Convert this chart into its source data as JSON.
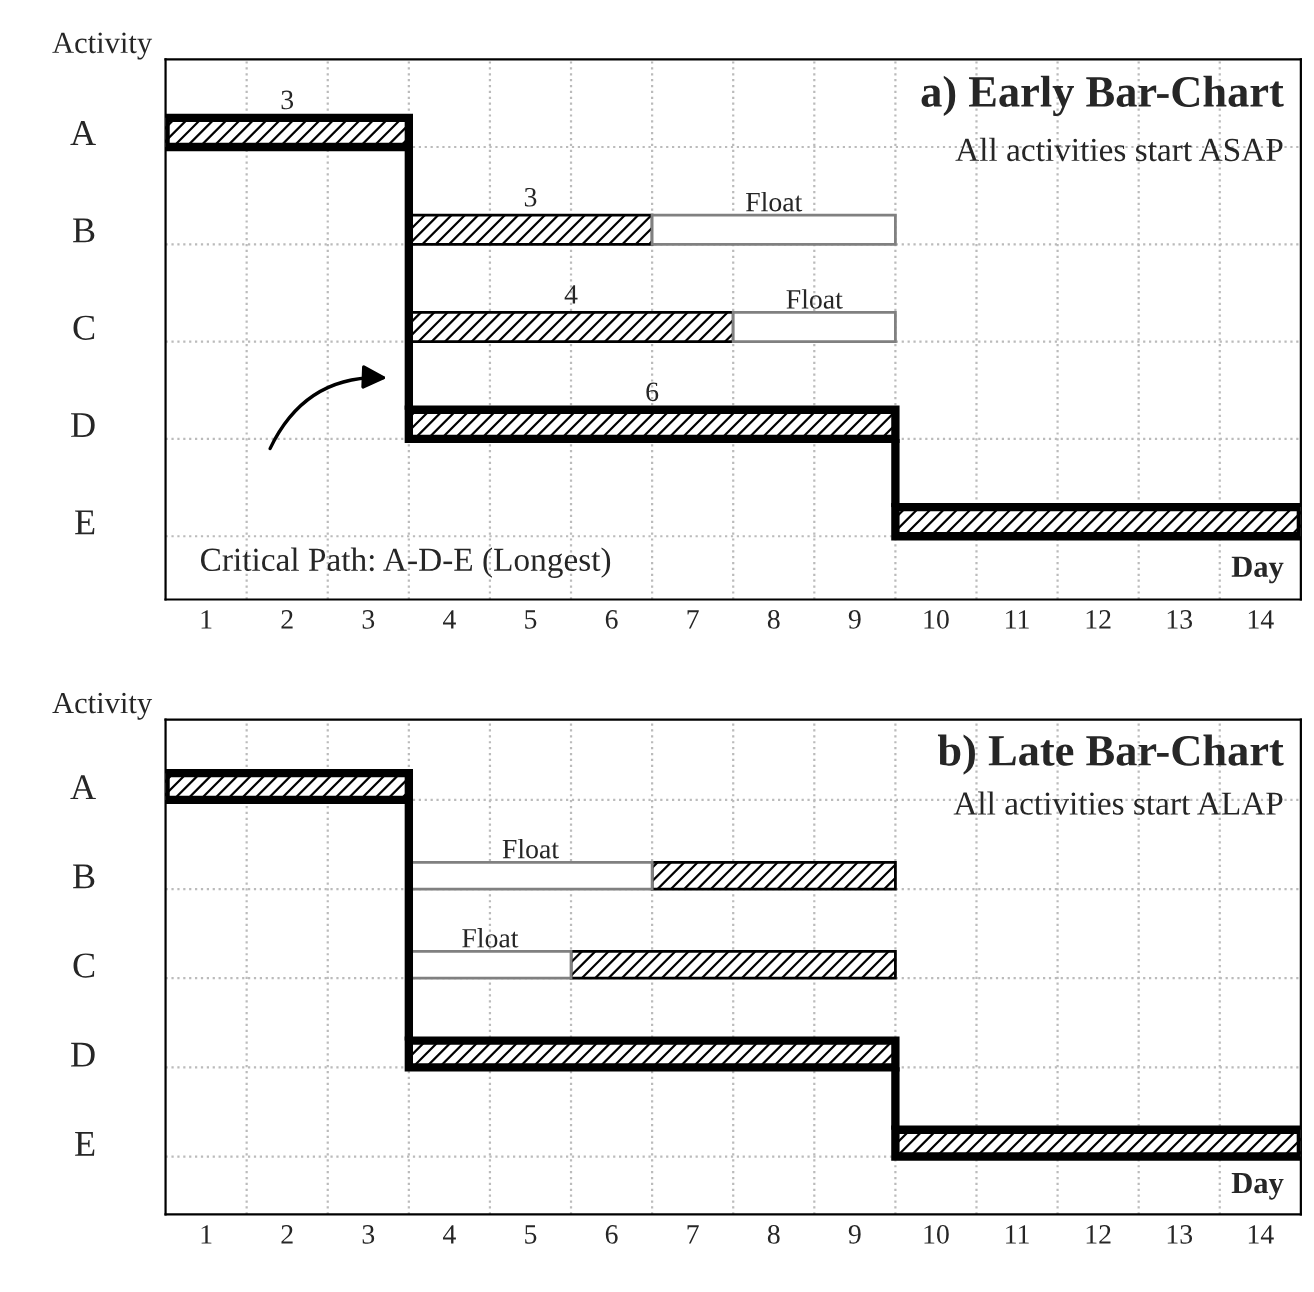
{
  "chart_data": [
    {
      "type": "bar",
      "orientation": "horizontal",
      "title": "a) Early Bar-Chart",
      "subtitle": "All activities start ASAP",
      "xlabel": "Day",
      "ylabel": "Activity",
      "categories": [
        "A",
        "B",
        "C",
        "D",
        "E"
      ],
      "xlim": [
        0,
        14
      ],
      "xticks": [
        {
          "value": 0.5,
          "label": "1"
        },
        {
          "value": 1.5,
          "label": "2"
        },
        {
          "value": 2.5,
          "label": "3"
        },
        {
          "value": 3.5,
          "label": "4"
        },
        {
          "value": 4.5,
          "label": "5"
        },
        {
          "value": 5.5,
          "label": "6"
        },
        {
          "value": 6.5,
          "label": "7"
        },
        {
          "value": 7.5,
          "label": "8"
        },
        {
          "value": 8.5,
          "label": "9"
        },
        {
          "value": 9.5,
          "label": "10"
        },
        {
          "value": 10.5,
          "label": "11"
        },
        {
          "value": 11.5,
          "label": "12"
        },
        {
          "value": 12.5,
          "label": "13"
        },
        {
          "value": 13.5,
          "label": "14"
        }
      ],
      "grid": true,
      "series": [
        {
          "color": "#000000",
          "line_style": "solid",
          "base": [
            0,
            null,
            null,
            3,
            9
          ],
          "values": [
            3,
            null,
            null,
            6,
            5
          ],
          "value_labels": [
            "3",
            null,
            null,
            "6",
            null
          ]
        },
        {
          "color": "#000000",
          "base": [
            null,
            3,
            3,
            null,
            null
          ],
          "values": [
            null,
            3,
            4,
            null,
            null
          ],
          "value_labels": [
            null,
            "3",
            "4",
            null,
            null
          ]
        },
        {
          "color": "#808080",
          "base": [
            null,
            6,
            7,
            null,
            null
          ],
          "values": [
            null,
            3,
            2,
            null,
            null
          ],
          "value_labels": [
            null,
            "Float",
            "Float",
            null,
            null
          ]
        }
      ],
      "annotations": [
        "Critical Path: A-D-E (Longest)"
      ]
    },
    {
      "type": "bar",
      "orientation": "horizontal",
      "title": "b) Late Bar-Chart",
      "subtitle": "All activities start ALAP",
      "xlabel": "Day",
      "ylabel": "Activity",
      "categories": [
        "A",
        "B",
        "C",
        "D",
        "E"
      ],
      "xlim": [
        0,
        14
      ],
      "xticks": [
        {
          "value": 0.5,
          "label": "1"
        },
        {
          "value": 1.5,
          "label": "2"
        },
        {
          "value": 2.5,
          "label": "3"
        },
        {
          "value": 3.5,
          "label": "4"
        },
        {
          "value": 4.5,
          "label": "5"
        },
        {
          "value": 5.5,
          "label": "6"
        },
        {
          "value": 6.5,
          "label": "7"
        },
        {
          "value": 7.5,
          "label": "8"
        },
        {
          "value": 8.5,
          "label": "9"
        },
        {
          "value": 9.5,
          "label": "10"
        },
        {
          "value": 10.5,
          "label": "11"
        },
        {
          "value": 11.5,
          "label": "12"
        },
        {
          "value": 12.5,
          "label": "13"
        },
        {
          "value": 13.5,
          "label": "14"
        }
      ],
      "grid": true,
      "series": [
        {
          "color": "#000000",
          "line_style": "solid",
          "base": [
            0,
            null,
            null,
            3,
            9
          ],
          "values": [
            3,
            null,
            null,
            6,
            5
          ]
        },
        {
          "color": "#000000",
          "base": [
            null,
            6,
            5,
            null,
            null
          ],
          "values": [
            null,
            3,
            4,
            null,
            null
          ]
        },
        {
          "color": "#808080",
          "base": [
            null,
            3,
            3,
            null,
            null
          ],
          "values": [
            null,
            3,
            2,
            null,
            null
          ],
          "value_labels": [
            null,
            "Float",
            "Float",
            null,
            null
          ]
        }
      ]
    }
  ]
}
